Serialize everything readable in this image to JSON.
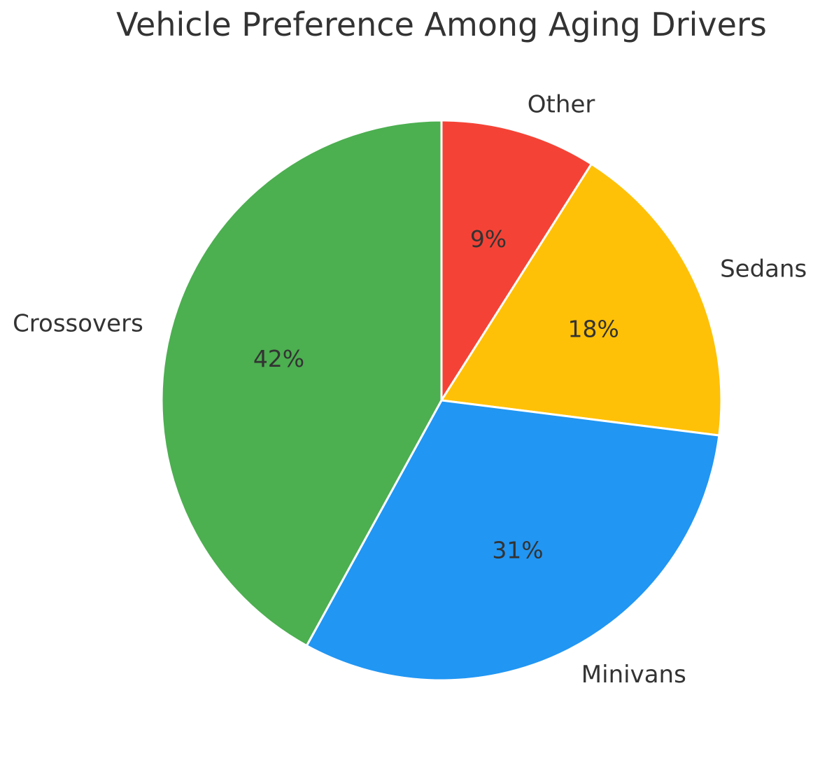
{
  "chart_data": {
    "type": "pie",
    "title": "Vehicle Preference Among Aging Drivers",
    "slices": [
      {
        "label": "Other",
        "value": 9,
        "pct_label": "9%",
        "color": "#f44336"
      },
      {
        "label": "Sedans",
        "value": 18,
        "pct_label": "18%",
        "color": "#ffc107"
      },
      {
        "label": "Minivans",
        "value": 31,
        "pct_label": "31%",
        "color": "#2196f3"
      },
      {
        "label": "Crossovers",
        "value": 42,
        "pct_label": "42%",
        "color": "#4caf50"
      }
    ],
    "start_angle_deg": 90,
    "direction": "clockwise",
    "label_distance": 1.1,
    "pct_distance": 0.6,
    "wedge_edge_color": "#ffffff",
    "text_color": "#333333",
    "legend_position": "none"
  }
}
